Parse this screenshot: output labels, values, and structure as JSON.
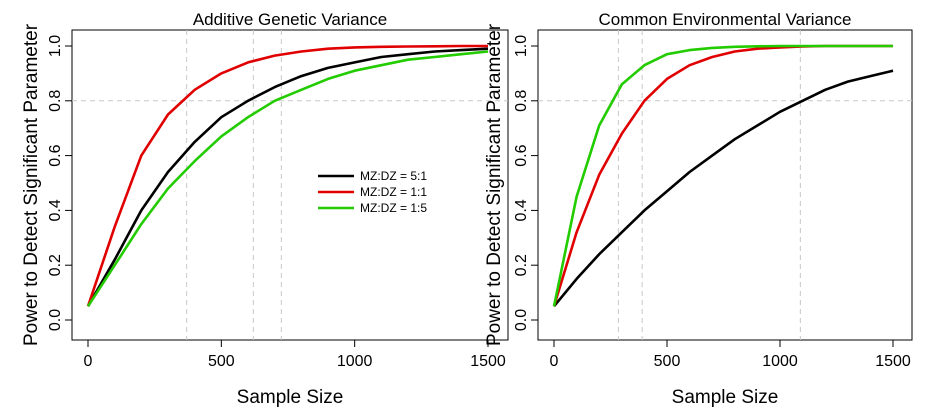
{
  "chart_data": [
    {
      "type": "line",
      "title": "Additive Genetic Variance",
      "xlabel": "Sample Size",
      "ylabel": "Power to Detect Significant Parameter",
      "xlim": [
        0,
        1500
      ],
      "ylim": [
        0,
        1
      ],
      "x_ticks": [
        "0",
        "500",
        "1000",
        "1500"
      ],
      "y_ticks": [
        "0.0",
        "0.2",
        "0.4",
        "0.6",
        "0.8",
        "1.0"
      ],
      "grid": "dashed reference lines at power 0.8 and at sample sizes reaching 0.8",
      "reference_y": 0.8,
      "reference_x": [
        370,
        620,
        725
      ],
      "x": [
        0,
        100,
        200,
        300,
        400,
        500,
        600,
        700,
        800,
        900,
        1000,
        1100,
        1200,
        1300,
        1400,
        1500
      ],
      "series": [
        {
          "name": "MZ:DZ = 5:1",
          "color": "#000000",
          "values": [
            0.05,
            0.22,
            0.4,
            0.54,
            0.65,
            0.74,
            0.8,
            0.85,
            0.89,
            0.92,
            0.94,
            0.96,
            0.97,
            0.98,
            0.985,
            0.99
          ]
        },
        {
          "name": "MZ:DZ = 1:1",
          "color": "#e00000",
          "values": [
            0.05,
            0.34,
            0.6,
            0.75,
            0.84,
            0.9,
            0.94,
            0.965,
            0.98,
            0.99,
            0.995,
            0.997,
            0.998,
            0.999,
            1.0,
            1.0
          ]
        },
        {
          "name": "MZ:DZ = 1:5",
          "color": "#22cc00",
          "values": [
            0.05,
            0.2,
            0.35,
            0.48,
            0.58,
            0.67,
            0.74,
            0.8,
            0.84,
            0.88,
            0.91,
            0.93,
            0.95,
            0.96,
            0.97,
            0.98
          ]
        }
      ],
      "legend": "center-right"
    },
    {
      "type": "line",
      "title": "Common Environmental Variance",
      "xlabel": "Sample Size",
      "ylabel": "Power to Detect Significant Parameter",
      "xlim": [
        0,
        1500
      ],
      "ylim": [
        0,
        1
      ],
      "x_ticks": [
        "0",
        "500",
        "1000",
        "1500"
      ],
      "y_ticks": [
        "0.0",
        "0.2",
        "0.4",
        "0.6",
        "0.8",
        "1.0"
      ],
      "grid": "dashed reference lines at power 0.8 and at sample sizes reaching 0.8",
      "reference_y": 0.8,
      "reference_x": [
        285,
        390,
        1090
      ],
      "x": [
        0,
        100,
        200,
        300,
        400,
        500,
        600,
        700,
        800,
        900,
        1000,
        1100,
        1200,
        1300,
        1400,
        1500
      ],
      "series": [
        {
          "name": "MZ:DZ = 5:1",
          "color": "#000000",
          "values": [
            0.05,
            0.15,
            0.24,
            0.32,
            0.4,
            0.47,
            0.54,
            0.6,
            0.66,
            0.71,
            0.76,
            0.8,
            0.84,
            0.87,
            0.89,
            0.91
          ]
        },
        {
          "name": "MZ:DZ = 1:1",
          "color": "#e00000",
          "values": [
            0.05,
            0.32,
            0.53,
            0.68,
            0.8,
            0.88,
            0.93,
            0.96,
            0.98,
            0.99,
            0.995,
            0.998,
            1.0,
            1.0,
            1.0,
            1.0
          ]
        },
        {
          "name": "MZ:DZ = 1:5",
          "color": "#22cc00",
          "values": [
            0.05,
            0.45,
            0.71,
            0.86,
            0.93,
            0.97,
            0.985,
            0.993,
            0.997,
            0.999,
            1.0,
            1.0,
            1.0,
            1.0,
            1.0,
            1.0
          ]
        }
      ]
    }
  ]
}
